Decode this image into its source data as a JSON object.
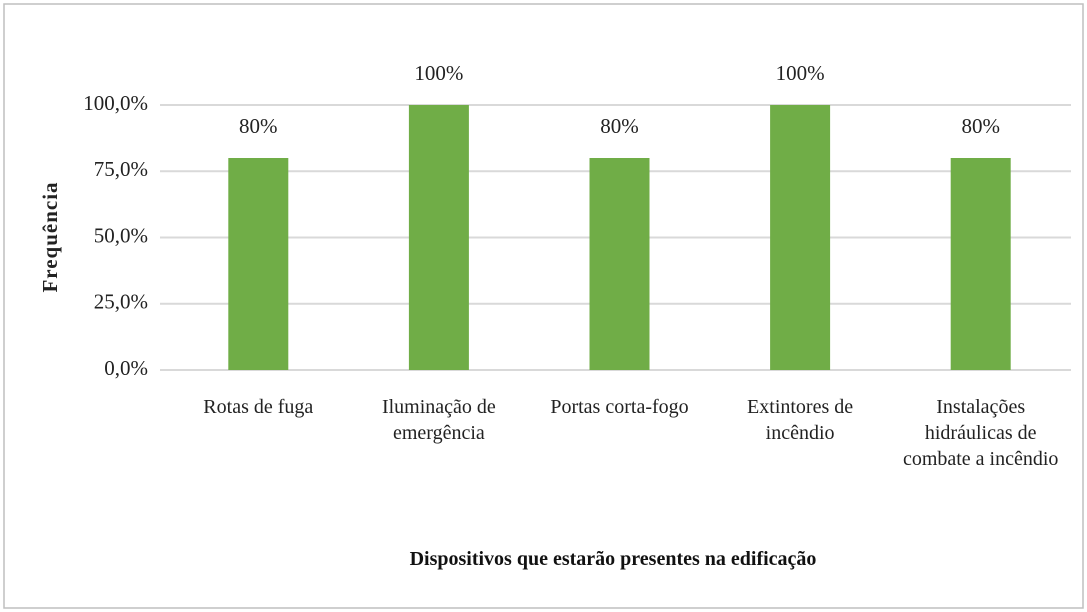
{
  "chart_data": {
    "type": "bar",
    "x_label": "Dispositivos que estarão presentes na edificação",
    "y_label": "Frequência",
    "categories": [
      "Rotas de fuga",
      "Iluminação de emergência",
      "Portas corta-fogo",
      "Extintores de incêndio",
      "Instalações hidráulicas de combate a incêndio"
    ],
    "values": [
      80,
      100,
      80,
      100,
      80
    ],
    "value_labels": [
      "80%",
      "100%",
      "80%",
      "100%",
      "80%"
    ],
    "color": "#70ad47",
    "ylim": [
      0,
      100
    ],
    "yticks": [
      {
        "value": 0,
        "label": "0,0%"
      },
      {
        "value": 25,
        "label": "25,0%"
      },
      {
        "value": 50,
        "label": "50,0%"
      },
      {
        "value": 75,
        "label": "75,0%"
      },
      {
        "value": 100,
        "label": "100,0%"
      }
    ],
    "grid": true
  }
}
